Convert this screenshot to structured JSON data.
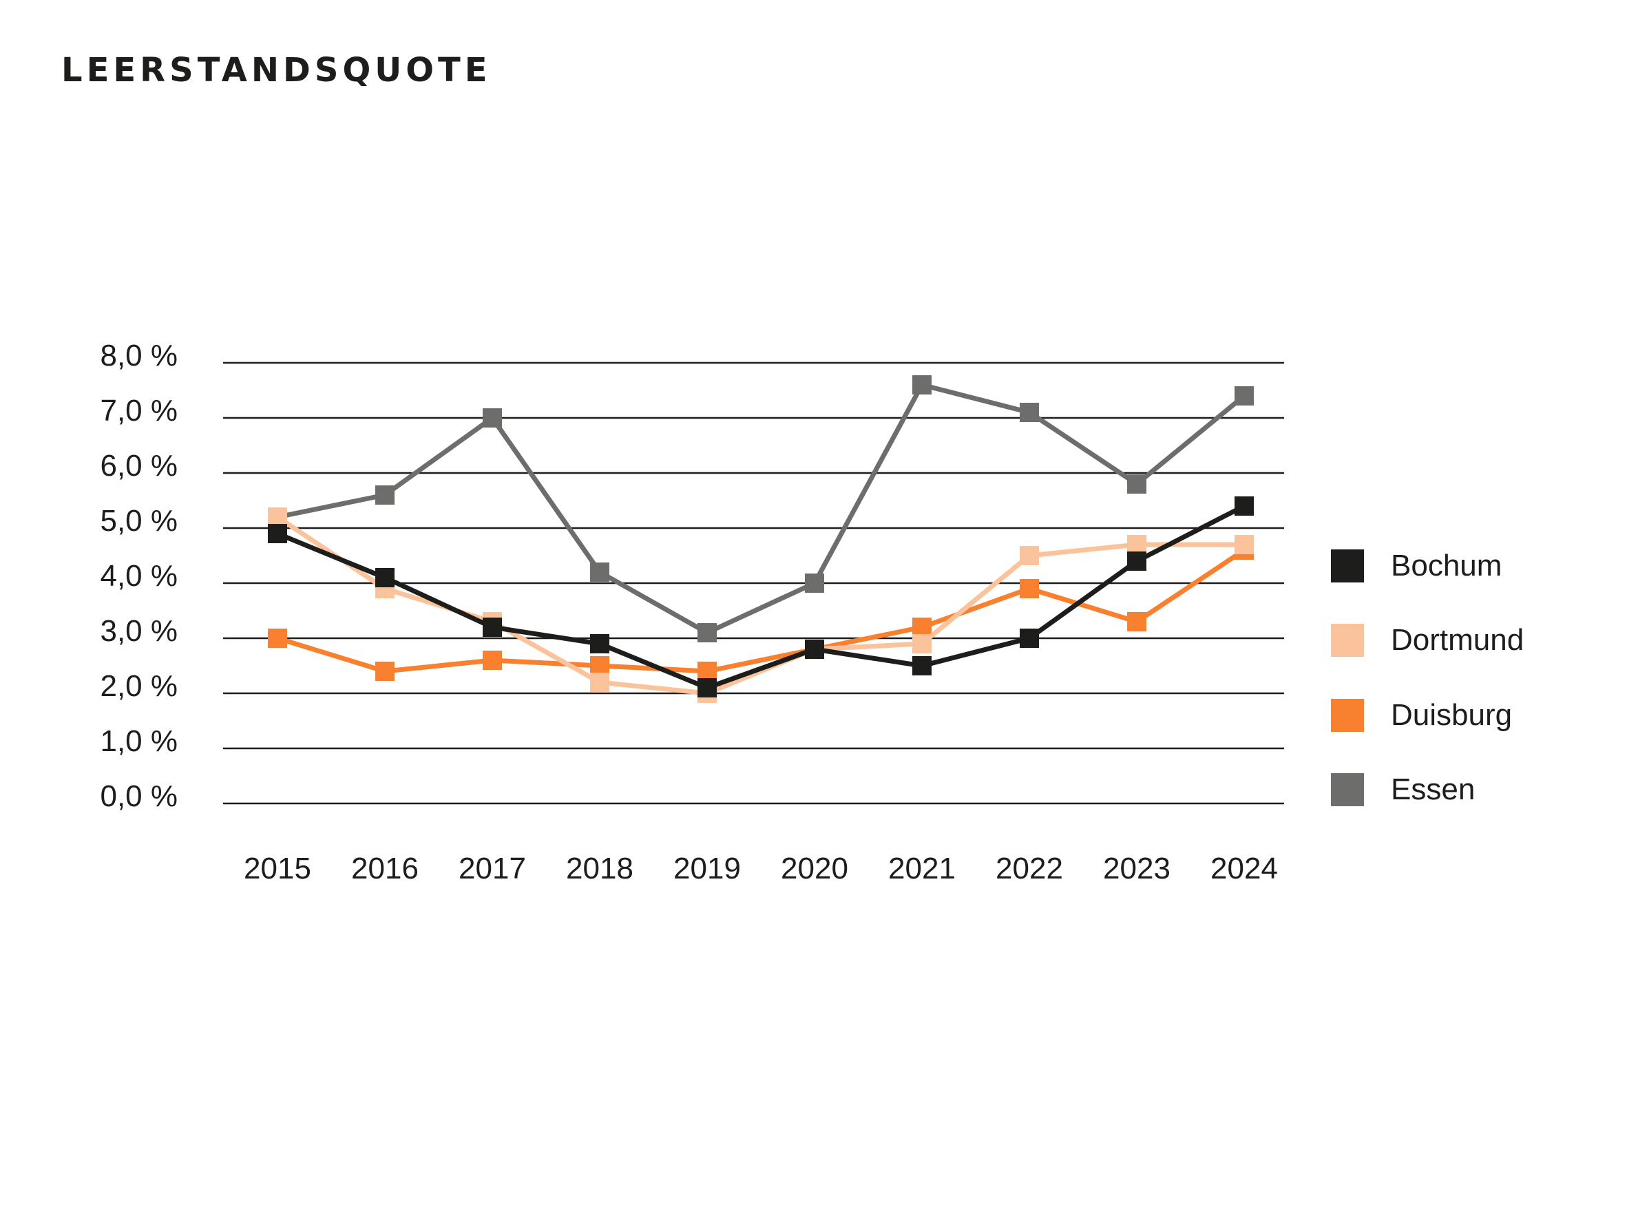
{
  "page": {
    "background": "#ffffff",
    "text_color": "#1d1d1b"
  },
  "chart_data": {
    "type": "line",
    "title": "LEERSTANDSQUOTE",
    "unit": "%",
    "x": [
      "2015",
      "2016",
      "2017",
      "2018",
      "2019",
      "2020",
      "2021",
      "2022",
      "2023",
      "2024"
    ],
    "series": [
      {
        "name": "Bochum",
        "color": "#1d1d1b",
        "values": [
          4.9,
          4.1,
          3.2,
          2.9,
          2.1,
          2.8,
          2.5,
          3.0,
          4.4,
          5.4
        ]
      },
      {
        "name": "Dortmund",
        "color": "#fbc39b",
        "values": [
          5.2,
          3.9,
          3.3,
          2.2,
          2.0,
          2.8,
          2.9,
          4.5,
          4.7,
          4.7
        ]
      },
      {
        "name": "Duisburg",
        "color": "#f8802f",
        "values": [
          3.0,
          2.4,
          2.6,
          2.5,
          2.4,
          2.8,
          3.2,
          3.9,
          3.3,
          4.6
        ]
      },
      {
        "name": "Essen",
        "color": "#6d6d6c",
        "values": [
          5.2,
          5.6,
          7.0,
          4.2,
          3.1,
          4.0,
          7.6,
          7.1,
          5.8,
          7.4
        ]
      }
    ],
    "ylim": [
      0,
      8
    ],
    "ytick_step": 1,
    "ytick_labels": [
      "0,0 %",
      "1,0 %",
      "2,0 %",
      "3,0 %",
      "4,0 %",
      "5,0 %",
      "6,0 %",
      "7,0 %",
      "8,0 %"
    ],
    "grid": "horizontal",
    "grid_color": "#1d1d1b",
    "legend_position": "right",
    "marker": "square"
  },
  "render_order_bottom_to_top": [
    "Essen",
    "Duisburg",
    "Dortmund",
    "Bochum"
  ]
}
